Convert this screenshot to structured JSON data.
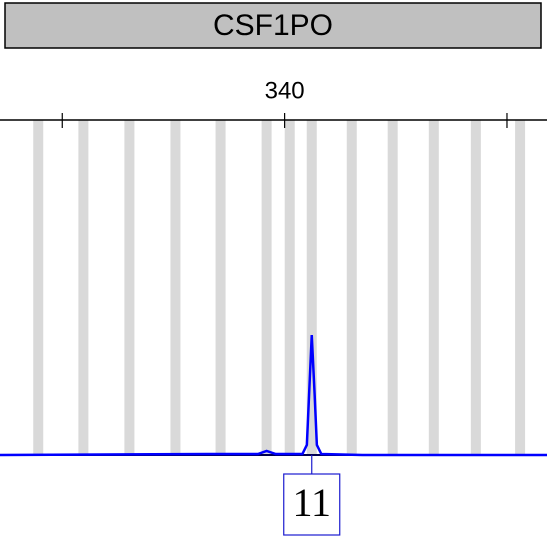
{
  "chart_data": {
    "type": "line",
    "title": "CSF1PO",
    "xlim": [
      327.2,
      351.8
    ],
    "ylim": [
      0,
      100
    ],
    "xticks": [
      340
    ],
    "xticks_unlabeled": [
      330,
      350
    ],
    "allele_bins": [
      328.92,
      330.95,
      333.02,
      335.09,
      337.12,
      339.19,
      340.23,
      341.22,
      343.02,
      344.86,
      346.71,
      348.6,
      350.59
    ],
    "bin_width": 0.45,
    "bin_color": "#d9d9d9",
    "series": [
      {
        "color": "#0000ff",
        "x": [
          327.2,
          336.5,
          338.8,
          339.19,
          339.6,
          340.8,
          341.0,
          341.1,
          341.22,
          341.35,
          341.45,
          341.65,
          343.5,
          351.8
        ],
        "values": [
          0,
          0.3,
          0.3,
          1.2,
          0.3,
          0.3,
          3,
          18,
          35.8,
          18,
          3,
          0.3,
          0,
          0
        ]
      }
    ],
    "allele_calls": [
      {
        "label": "11",
        "x": 341.22
      }
    ]
  }
}
